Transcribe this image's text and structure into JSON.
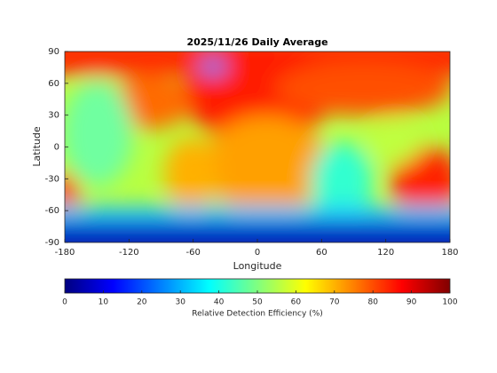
{
  "chart_data": {
    "type": "map",
    "title": "2025/11/26 Daily Average",
    "xlabel": "Longitude",
    "ylabel": "Latitude",
    "xlim": [
      -180,
      180
    ],
    "xticks": [
      -180,
      -120,
      -60,
      0,
      60,
      120,
      180
    ],
    "ylim": [
      -90,
      90
    ],
    "yticks": [
      -90,
      -60,
      -30,
      0,
      30,
      60,
      90
    ],
    "colormap": "jet",
    "colorbar": {
      "label": "Relative Detection Efficiency (%)",
      "lim": [
        0,
        100
      ],
      "ticks": [
        0,
        10,
        20,
        30,
        40,
        50,
        60,
        70,
        80,
        90,
        100
      ]
    }
  }
}
